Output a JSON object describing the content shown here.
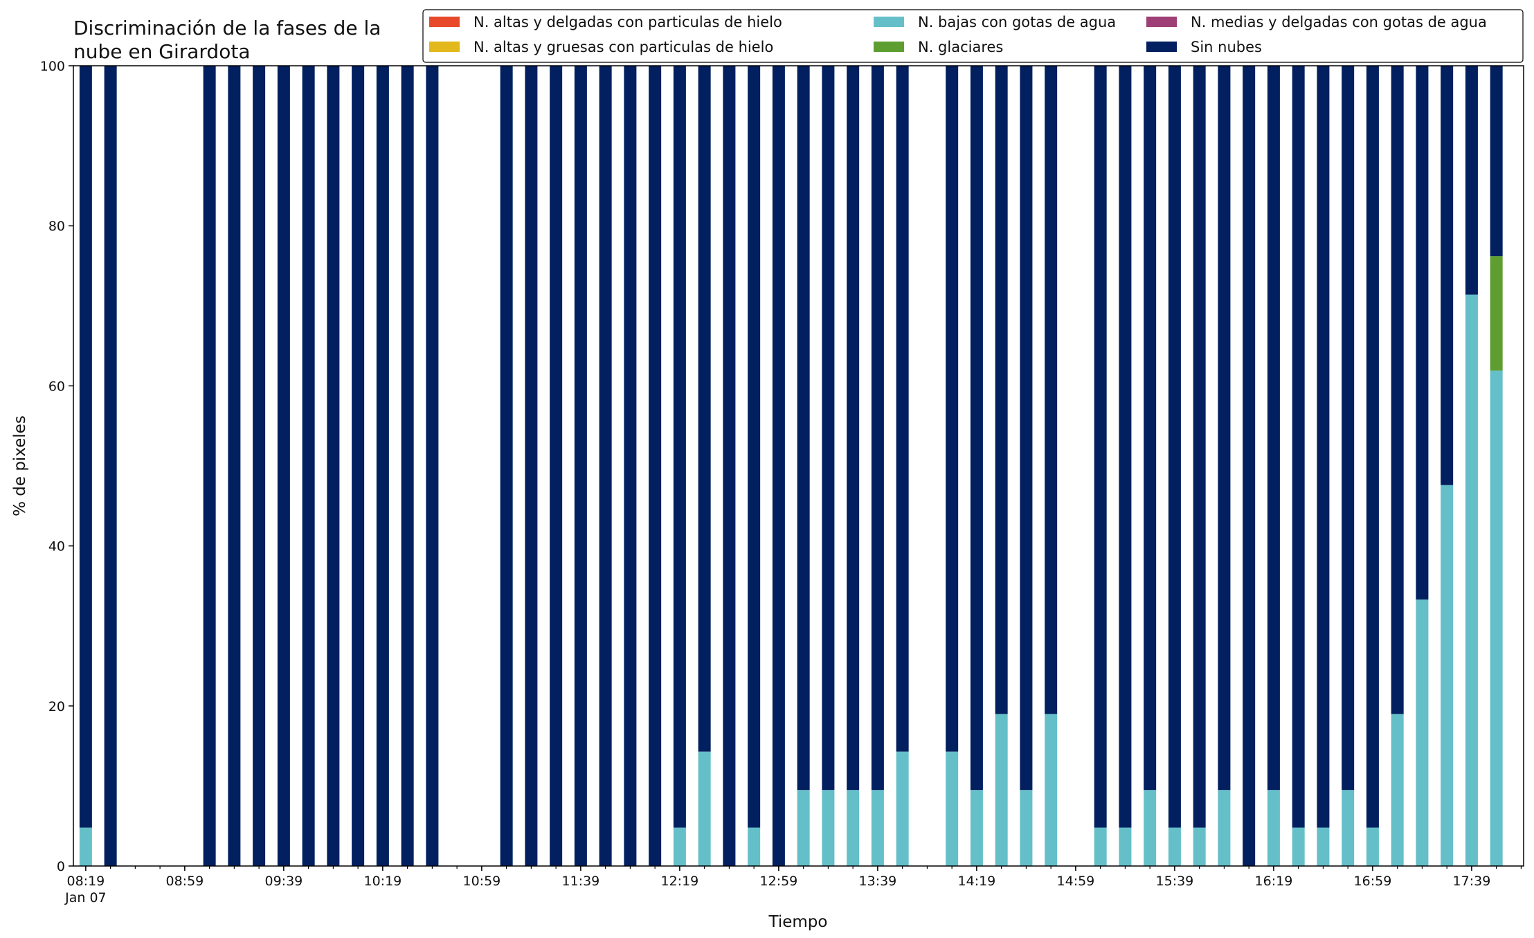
{
  "chart_data": {
    "type": "bar",
    "stacked": true,
    "title_lines": [
      "Discriminación de la fases de la",
      "nube en Girardota"
    ],
    "xlabel": "Tiempo",
    "ylabel": "% de pixeles",
    "ylim": [
      0,
      100
    ],
    "yticks": [
      0,
      20,
      40,
      60,
      80,
      100
    ],
    "xlim": [
      "08:14",
      "18:00"
    ],
    "xticks_major": [
      "08:19",
      "08:59",
      "09:39",
      "10:19",
      "10:59",
      "11:39",
      "12:19",
      "12:59",
      "13:39",
      "14:19",
      "14:59",
      "15:39",
      "16:19",
      "16:59",
      "17:39"
    ],
    "xtick_date_label": "Jan 07",
    "legend": {
      "placement": "top-right",
      "columns": 3,
      "items": [
        {
          "label": "N. altas y delgadas con particulas de hielo",
          "color": "#e8492b"
        },
        {
          "label": "N. altas y gruesas con particulas de hielo",
          "color": "#e2b81c"
        },
        {
          "label": "N. bajas con gotas de agua",
          "color": "#65bfc9"
        },
        {
          "label": "N. glaciares",
          "color": "#5e9e31"
        },
        {
          "label": "N. medias y delgadas con gotas de agua",
          "color": "#9e3f76"
        },
        {
          "label": "Sin nubes",
          "color": "#02205f"
        }
      ]
    },
    "x": [
      "08:19",
      "08:29",
      "09:09",
      "09:19",
      "09:29",
      "09:39",
      "09:49",
      "09:59",
      "10:09",
      "10:19",
      "10:29",
      "10:39",
      "11:09",
      "11:19",
      "11:29",
      "11:39",
      "11:49",
      "11:59",
      "12:09",
      "12:19",
      "12:29",
      "12:39",
      "12:49",
      "12:59",
      "13:09",
      "13:19",
      "13:29",
      "13:39",
      "13:49",
      "14:09",
      "14:19",
      "14:29",
      "14:39",
      "14:49",
      "15:09",
      "15:19",
      "15:29",
      "15:39",
      "15:49",
      "15:59",
      "16:09",
      "16:19",
      "16:29",
      "16:39",
      "16:49",
      "16:59",
      "17:09",
      "17:19",
      "17:29",
      "17:39",
      "17:49"
    ],
    "series": [
      {
        "name": "N. altas y delgadas con particulas de hielo",
        "color": "#e8492b",
        "values": [
          0,
          0,
          0,
          0,
          0,
          0,
          0,
          0,
          0,
          0,
          0,
          0,
          0,
          0,
          0,
          0,
          0,
          0,
          0,
          0,
          0,
          0,
          0,
          0,
          0,
          0,
          0,
          0,
          0,
          0,
          0,
          0,
          0,
          0,
          0,
          0,
          0,
          0,
          0,
          0,
          0,
          0,
          0,
          0,
          0,
          0,
          0,
          0,
          0,
          0,
          0
        ]
      },
      {
        "name": "N. altas y gruesas con particulas de hielo",
        "color": "#e2b81c",
        "values": [
          0,
          0,
          0,
          0,
          0,
          0,
          0,
          0,
          0,
          0,
          0,
          0,
          0,
          0,
          0,
          0,
          0,
          0,
          0,
          0,
          0,
          0,
          0,
          0,
          0,
          0,
          0,
          0,
          0,
          0,
          0,
          0,
          0,
          0,
          0,
          0,
          0,
          0,
          0,
          0,
          0,
          0,
          0,
          0,
          0,
          0,
          0,
          0,
          0,
          0,
          0
        ]
      },
      {
        "name": "N. bajas con gotas de agua",
        "color": "#65bfc9",
        "values": [
          4.8,
          0,
          0,
          0,
          0,
          0,
          0,
          0,
          0,
          0,
          0,
          0,
          0,
          0,
          0,
          0,
          0,
          0,
          0,
          4.8,
          14.3,
          0,
          4.8,
          0,
          9.5,
          9.5,
          9.5,
          9.5,
          14.3,
          14.3,
          9.5,
          19.0,
          9.5,
          19.0,
          4.8,
          4.8,
          9.5,
          4.8,
          4.8,
          9.5,
          0,
          9.5,
          4.8,
          4.8,
          9.5,
          4.8,
          19.0,
          33.3,
          47.6,
          71.4,
          61.9
        ]
      },
      {
        "name": "N. glaciares",
        "color": "#5e9e31",
        "values": [
          0,
          0,
          0,
          0,
          0,
          0,
          0,
          0,
          0,
          0,
          0,
          0,
          0,
          0,
          0,
          0,
          0,
          0,
          0,
          0,
          0,
          0,
          0,
          0,
          0,
          0,
          0,
          0,
          0,
          0,
          0,
          0,
          0,
          0,
          0,
          0,
          0,
          0,
          0,
          0,
          0,
          0,
          0,
          0,
          0,
          0,
          0,
          0,
          0,
          0,
          14.3
        ]
      },
      {
        "name": "N. medias y delgadas con gotas de agua",
        "color": "#9e3f76",
        "values": [
          0,
          0,
          0,
          0,
          0,
          0,
          0,
          0,
          0,
          0,
          0,
          0,
          0,
          0,
          0,
          0,
          0,
          0,
          0,
          0,
          0,
          0,
          0,
          0,
          0,
          0,
          0,
          0,
          0,
          0,
          0,
          0,
          0,
          0,
          0,
          0,
          0,
          0,
          0,
          0,
          0,
          0,
          0,
          0,
          0,
          0,
          0,
          0,
          0,
          0,
          0
        ]
      },
      {
        "name": "Sin nubes",
        "color": "#02205f",
        "values": [
          95.2,
          100,
          100,
          100,
          100,
          100,
          100,
          100,
          100,
          100,
          100,
          100,
          100,
          100,
          100,
          100,
          100,
          100,
          100,
          95.2,
          85.7,
          100,
          95.2,
          100,
          90.5,
          90.5,
          90.5,
          90.5,
          85.7,
          85.7,
          90.5,
          81.0,
          90.5,
          81.0,
          95.2,
          95.2,
          90.5,
          95.2,
          95.2,
          90.5,
          100,
          90.5,
          95.2,
          95.2,
          90.5,
          95.2,
          81.0,
          66.7,
          52.4,
          28.6,
          23.8
        ]
      }
    ]
  }
}
